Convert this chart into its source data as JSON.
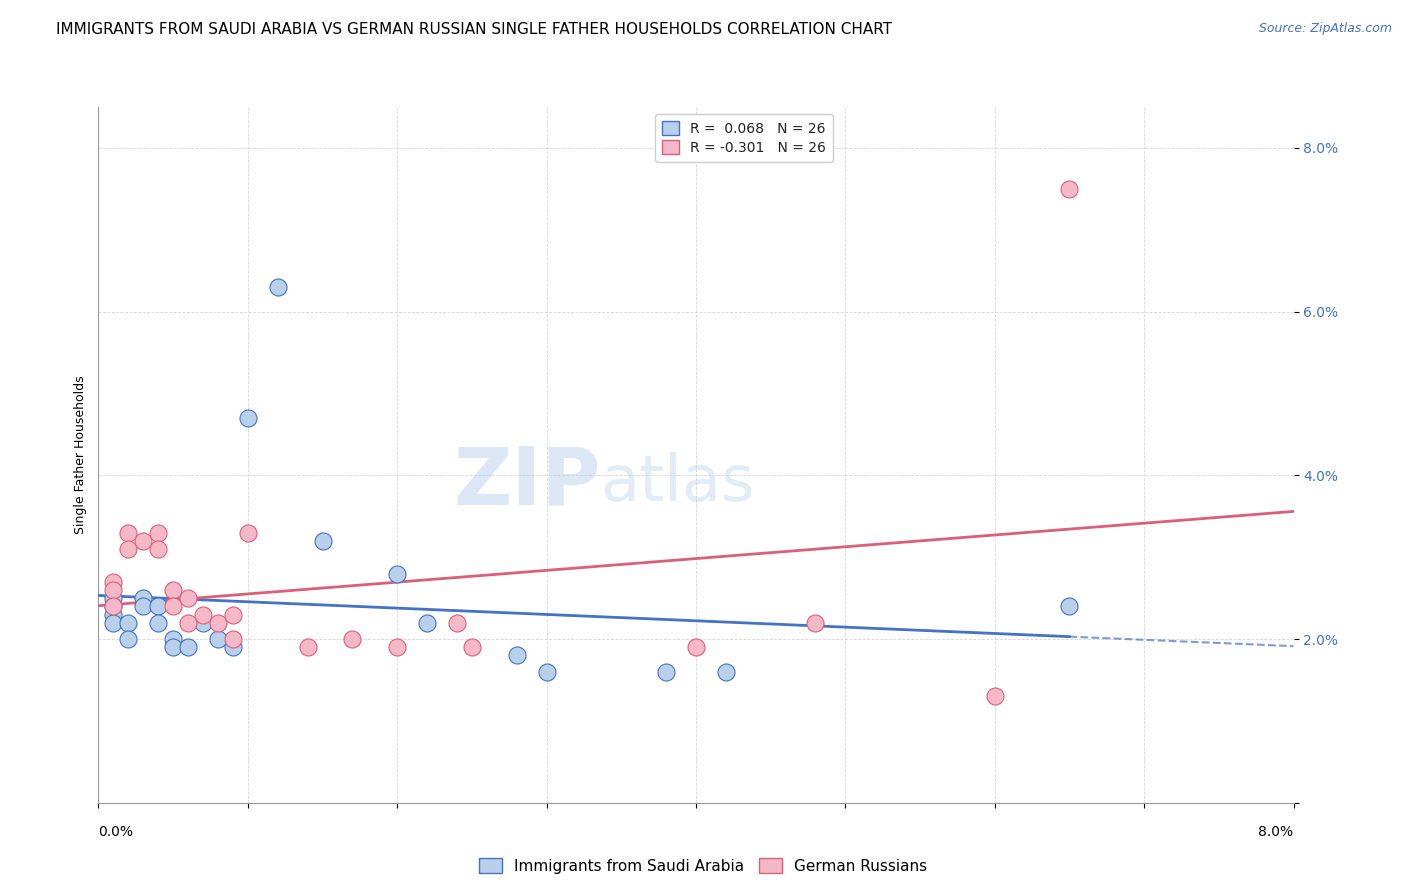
{
  "title": "IMMIGRANTS FROM SAUDI ARABIA VS GERMAN RUSSIAN SINGLE FATHER HOUSEHOLDS CORRELATION CHART",
  "source": "Source: ZipAtlas.com",
  "ylabel": "Single Father Households",
  "xlim": [
    0.0,
    0.08
  ],
  "ylim": [
    0.0,
    0.085
  ],
  "R_blue": 0.068,
  "N_blue": 26,
  "R_pink": -0.301,
  "N_pink": 26,
  "legend_label_blue": "Immigrants from Saudi Arabia",
  "legend_label_pink": "German Russians",
  "blue_color": "#b8d0ea",
  "blue_line_color": "#4472c4",
  "pink_color": "#f4b8c8",
  "pink_line_color": "#d9607a",
  "background_color": "#ffffff",
  "watermark_zip": "ZIP",
  "watermark_atlas": "atlas",
  "blue_x": [
    0.001,
    0.001,
    0.001,
    0.001,
    0.002,
    0.002,
    0.003,
    0.003,
    0.004,
    0.004,
    0.005,
    0.005,
    0.006,
    0.007,
    0.008,
    0.009,
    0.01,
    0.012,
    0.015,
    0.02,
    0.022,
    0.028,
    0.03,
    0.038,
    0.042,
    0.065
  ],
  "blue_y": [
    0.025,
    0.024,
    0.023,
    0.022,
    0.022,
    0.02,
    0.025,
    0.024,
    0.024,
    0.022,
    0.02,
    0.019,
    0.019,
    0.022,
    0.02,
    0.019,
    0.047,
    0.063,
    0.032,
    0.028,
    0.022,
    0.018,
    0.016,
    0.016,
    0.016,
    0.024
  ],
  "pink_x": [
    0.001,
    0.001,
    0.001,
    0.002,
    0.002,
    0.003,
    0.004,
    0.004,
    0.005,
    0.005,
    0.006,
    0.006,
    0.007,
    0.008,
    0.009,
    0.009,
    0.01,
    0.014,
    0.017,
    0.02,
    0.024,
    0.025,
    0.04,
    0.048,
    0.06,
    0.065
  ],
  "pink_y": [
    0.027,
    0.026,
    0.024,
    0.033,
    0.031,
    0.032,
    0.033,
    0.031,
    0.026,
    0.024,
    0.025,
    0.022,
    0.023,
    0.022,
    0.023,
    0.02,
    0.033,
    0.019,
    0.02,
    0.019,
    0.022,
    0.019,
    0.019,
    0.022,
    0.013,
    0.075
  ],
  "title_fontsize": 11,
  "source_fontsize": 9,
  "axis_label_fontsize": 9,
  "tick_fontsize": 10,
  "legend_fontsize": 10
}
